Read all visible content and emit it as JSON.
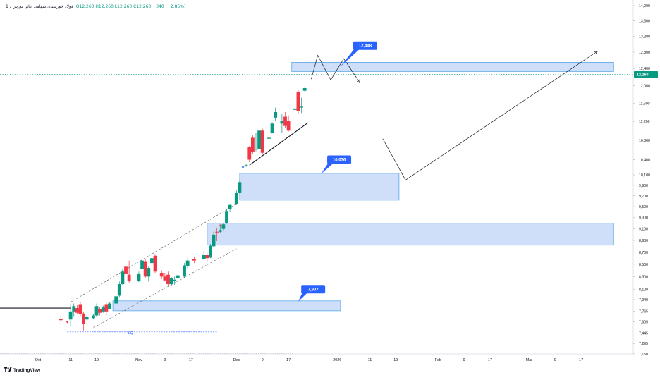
{
  "header": {
    "symbol": "1 ، فولاد خوزستان،سهامی عام، بورس",
    "ohlc": "O12,260 H12,260 L12,260 C12,260 +340 (+2.85%)"
  },
  "brand": "TradingView",
  "colors": {
    "up": "#089981",
    "down": "#f23645",
    "zone_fill": "#bcd2f7",
    "zone_stroke": "#5aa6e6",
    "callout": "#2962ff",
    "last_price": "#089981"
  },
  "chart_data": {
    "type": "candlestick",
    "y_scale": "log",
    "ylim": [
      7150,
      14000
    ],
    "y_ticks": [
      14000,
      13600,
      13200,
      12800,
      12400,
      12000,
      11600,
      11200,
      10800,
      10400,
      10100,
      9900,
      9700,
      9500,
      9300,
      9100,
      8900,
      8700,
      8500,
      8300,
      8100,
      7940,
      7765,
      7605,
      7445,
      7295,
      7150
    ],
    "y_tick_labels": [
      "14,000",
      "13,600",
      "13,200",
      "12,800",
      "12,400",
      "12,000",
      "11,600",
      "11,200",
      "10,800",
      "10,400",
      "10,100",
      "9,900",
      "9,700",
      "9,500",
      "9,300",
      "9,100",
      "8,900",
      "8,700",
      "8,500",
      "8,300",
      "8,100",
      "7,940",
      "7,765",
      "7,605",
      "7,445",
      "7,295",
      "7,150"
    ],
    "x_start": "2025-10-01",
    "x_end": "2026-03-20",
    "x_ticks": [
      {
        "date": "2025-10-01",
        "label": "Oct"
      },
      {
        "date": "2025-10-11",
        "label": "11"
      },
      {
        "date": "2025-10-19",
        "label": "19"
      },
      {
        "date": "2025-11-01",
        "label": "Nov"
      },
      {
        "date": "2025-11-09",
        "label": "9"
      },
      {
        "date": "2025-11-17",
        "label": "17"
      },
      {
        "date": "2025-12-01",
        "label": "Dec"
      },
      {
        "date": "2025-12-09",
        "label": "9"
      },
      {
        "date": "2025-12-17",
        "label": "17"
      },
      {
        "date": "2026-01-01",
        "label": "2026"
      },
      {
        "date": "2026-01-11",
        "label": "11"
      },
      {
        "date": "2026-01-19",
        "label": "19"
      },
      {
        "date": "2026-02-01",
        "label": "Feb"
      },
      {
        "date": "2026-02-09",
        "label": "9"
      },
      {
        "date": "2026-02-17",
        "label": "17"
      },
      {
        "date": "2026-03-01",
        "label": "Mar"
      },
      {
        "date": "2026-03-09",
        "label": "9"
      },
      {
        "date": "2026-03-17",
        "label": "17"
      }
    ],
    "candles": [
      {
        "t": "2025-10-08",
        "o": 7650,
        "h": 7680,
        "l": 7560,
        "c": 7630
      },
      {
        "t": "2025-10-11",
        "o": 7640,
        "h": 7880,
        "l": 7540,
        "c": 7760
      },
      {
        "t": "2025-10-12",
        "o": 7760,
        "h": 7880,
        "l": 7690,
        "c": 7840
      },
      {
        "t": "2025-10-13",
        "o": 7810,
        "h": 7860,
        "l": 7720,
        "c": 7740
      },
      {
        "t": "2025-10-14",
        "o": 7870,
        "h": 7910,
        "l": 7690,
        "c": 7720
      },
      {
        "t": "2025-10-15",
        "o": 7730,
        "h": 7760,
        "l": 7480,
        "c": 7580
      },
      {
        "t": "2025-10-16",
        "o": 7640,
        "h": 7700,
        "l": 7620,
        "c": 7680
      },
      {
        "t": "2025-10-18",
        "o": 7660,
        "h": 7720,
        "l": 7640,
        "c": 7700
      },
      {
        "t": "2025-10-19",
        "o": 7700,
        "h": 7880,
        "l": 7680,
        "c": 7840
      },
      {
        "t": "2025-10-20",
        "o": 7790,
        "h": 7830,
        "l": 7700,
        "c": 7740
      },
      {
        "t": "2025-10-21",
        "o": 7760,
        "h": 7850,
        "l": 7740,
        "c": 7820
      },
      {
        "t": "2025-10-22",
        "o": 7870,
        "h": 7900,
        "l": 7700,
        "c": 7760
      },
      {
        "t": "2025-10-23",
        "o": 7800,
        "h": 7900,
        "l": 7790,
        "c": 7880
      },
      {
        "t": "2025-10-25",
        "o": 7880,
        "h": 8020,
        "l": 7870,
        "c": 7990
      },
      {
        "t": "2025-10-26",
        "o": 8000,
        "h": 8220,
        "l": 7980,
        "c": 8180
      },
      {
        "t": "2025-10-27",
        "o": 8180,
        "h": 8420,
        "l": 8170,
        "c": 8380
      },
      {
        "t": "2025-10-28",
        "o": 8460,
        "h": 8490,
        "l": 8310,
        "c": 8350
      },
      {
        "t": "2025-10-29",
        "o": 8330,
        "h": 8560,
        "l": 8200,
        "c": 8230
      },
      {
        "t": "2025-11-01",
        "o": 8230,
        "h": 8380,
        "l": 8210,
        "c": 8350
      },
      {
        "t": "2025-11-02",
        "o": 8420,
        "h": 8650,
        "l": 8330,
        "c": 8560
      },
      {
        "t": "2025-11-03",
        "o": 8550,
        "h": 8590,
        "l": 8280,
        "c": 8300
      },
      {
        "t": "2025-11-04",
        "o": 8300,
        "h": 8460,
        "l": 8220,
        "c": 8440
      },
      {
        "t": "2025-11-05",
        "o": 8520,
        "h": 8640,
        "l": 8420,
        "c": 8600
      },
      {
        "t": "2025-11-06",
        "o": 8640,
        "h": 8670,
        "l": 8360,
        "c": 8380
      },
      {
        "t": "2025-11-08",
        "o": 8360,
        "h": 8400,
        "l": 8260,
        "c": 8300
      },
      {
        "t": "2025-11-09",
        "o": 8300,
        "h": 8360,
        "l": 8220,
        "c": 8240
      },
      {
        "t": "2025-11-10",
        "o": 8330,
        "h": 8380,
        "l": 8150,
        "c": 8180
      },
      {
        "t": "2025-11-11",
        "o": 8180,
        "h": 8290,
        "l": 8150,
        "c": 8270
      },
      {
        "t": "2025-11-12",
        "o": 8230,
        "h": 8300,
        "l": 8170,
        "c": 8250
      },
      {
        "t": "2025-11-13",
        "o": 8280,
        "h": 8340,
        "l": 8220,
        "c": 8320
      },
      {
        "t": "2025-11-15",
        "o": 8300,
        "h": 8520,
        "l": 8280,
        "c": 8480
      },
      {
        "t": "2025-11-16",
        "o": 8470,
        "h": 8600,
        "l": 8420,
        "c": 8560
      },
      {
        "t": "2025-11-18",
        "o": 8590,
        "h": 8630,
        "l": 8520,
        "c": 8560
      },
      {
        "t": "2025-11-21",
        "o": 8580,
        "h": 8720,
        "l": 8560,
        "c": 8650
      },
      {
        "t": "2025-11-22",
        "o": 8650,
        "h": 8700,
        "l": 8540,
        "c": 8600
      },
      {
        "t": "2025-11-23",
        "o": 8610,
        "h": 8840,
        "l": 8600,
        "c": 8810
      },
      {
        "t": "2025-11-24",
        "o": 8800,
        "h": 9050,
        "l": 8790,
        "c": 9000
      },
      {
        "t": "2025-11-25",
        "o": 9050,
        "h": 9120,
        "l": 8890,
        "c": 9040
      },
      {
        "t": "2025-11-26",
        "o": 9050,
        "h": 9170,
        "l": 9020,
        "c": 9080
      },
      {
        "t": "2025-11-27",
        "o": 9100,
        "h": 9200,
        "l": 9080,
        "c": 9180
      },
      {
        "t": "2025-11-28",
        "o": 9200,
        "h": 9450,
        "l": 9190,
        "c": 9420
      },
      {
        "t": "2025-11-29",
        "o": 9450,
        "h": 9550,
        "l": 9400,
        "c": 9530
      },
      {
        "t": "2025-12-01",
        "o": 9550,
        "h": 9800,
        "l": 9530,
        "c": 9750
      },
      {
        "t": "2025-12-02",
        "o": 9750,
        "h": 10000,
        "l": 9740,
        "c": 9960
      },
      {
        "t": "2025-12-04",
        "o": 10280,
        "h": 10320,
        "l": 10260,
        "c": 10290
      },
      {
        "t": "2025-12-05",
        "o": 10650,
        "h": 10680,
        "l": 10350,
        "c": 10400
      },
      {
        "t": "2025-12-06",
        "o": 10850,
        "h": 10900,
        "l": 10520,
        "c": 10560
      },
      {
        "t": "2025-12-07",
        "o": 10620,
        "h": 10960,
        "l": 10570,
        "c": 10620
      },
      {
        "t": "2025-12-08",
        "o": 10620,
        "h": 11050,
        "l": 10580,
        "c": 11000
      },
      {
        "t": "2025-12-09",
        "o": 11000,
        "h": 11040,
        "l": 10500,
        "c": 10540
      },
      {
        "t": "2025-12-11",
        "o": 10830,
        "h": 11010,
        "l": 10800,
        "c": 10850
      },
      {
        "t": "2025-12-12",
        "o": 10950,
        "h": 11180,
        "l": 10940,
        "c": 11150
      },
      {
        "t": "2025-12-13",
        "o": 11280,
        "h": 11500,
        "l": 11200,
        "c": 11400
      },
      {
        "t": "2025-12-15",
        "o": 11150,
        "h": 11350,
        "l": 10950,
        "c": 11200
      },
      {
        "t": "2025-12-16",
        "o": 11300,
        "h": 11400,
        "l": 11050,
        "c": 11100
      },
      {
        "t": "2025-12-17",
        "o": 11200,
        "h": 11330,
        "l": 10980,
        "c": 11000
      },
      {
        "t": "2025-12-19",
        "o": 11450,
        "h": 11560,
        "l": 11420,
        "c": 11480
      },
      {
        "t": "2025-12-20",
        "o": 11860,
        "h": 11900,
        "l": 11350,
        "c": 11420
      },
      {
        "t": "2025-12-21",
        "o": 11500,
        "h": 11720,
        "l": 11380,
        "c": 11520
      },
      {
        "t": "2025-12-22",
        "o": 11880,
        "h": 11960,
        "l": 11860,
        "c": 11940
      }
    ],
    "last_price": 12260,
    "last_price_label": "12,260",
    "zones": [
      {
        "t1": "2025-12-18",
        "t2": "2026-03-27",
        "top": 12550,
        "bottom": 12330
      },
      {
        "t1": "2025-12-02",
        "t2": "2026-01-20",
        "top": 10130,
        "bottom": 9620
      },
      {
        "t1": "2025-11-22",
        "t2": "2026-03-27",
        "top": 9200,
        "bottom": 8820
      },
      {
        "t1": "2025-10-24",
        "t2": "2026-01-02",
        "top": 7920,
        "bottom": 7770
      }
    ],
    "callouts": [
      {
        "label": "12,448",
        "t": "2026-01-07",
        "v": 12960,
        "point_t": "2026-01-02",
        "point_v": 12450
      },
      {
        "label": "10,076",
        "t": "2025-12-30",
        "v": 10400,
        "point_t": "2025-12-27",
        "point_v": 10120
      },
      {
        "label": "7,907",
        "t": "2025-12-22",
        "v": 8100,
        "point_t": "2025-12-20",
        "point_v": 7910
      }
    ],
    "trend_lines": [
      {
        "style": "dashed",
        "points": [
          [
            "2025-10-11",
            7900
          ],
          [
            "2025-12-01",
            9550
          ]
        ]
      },
      {
        "style": "dashed",
        "points": [
          [
            "2025-10-18",
            7520
          ],
          [
            "2025-12-01",
            8760
          ]
        ]
      },
      {
        "style": "solid",
        "points": [
          [
            "2025-12-05",
            10290
          ],
          [
            "2025-12-23",
            11170
          ]
        ]
      },
      {
        "style": "solid",
        "points": [
          [
            "1970-01-01",
            7810
          ],
          [
            "2025-10-11",
            7810
          ]
        ]
      },
      {
        "style": "thin",
        "points": [
          [
            "2025-12-24",
            12150
          ],
          [
            "2025-12-26",
            12720
          ],
          [
            "2025-12-30",
            12130
          ],
          [
            "2026-01-03",
            12640
          ],
          [
            "2026-01-08",
            12060
          ]
        ]
      },
      {
        "style": "thin",
        "points": [
          [
            "2026-01-15",
            10830
          ],
          [
            "2026-01-22",
            10000
          ],
          [
            "2026-03-22",
            12820
          ]
        ]
      }
    ],
    "liquidity": {
      "label": "LQ",
      "t1": "2025-10-10",
      "t2": "2025-11-25",
      "v": 7460
    },
    "small_markers": [
      {
        "t": "2025-10-10",
        "v": 7600,
        "color": "#f23645",
        "shape": "down"
      },
      {
        "t": "2025-12-03",
        "v": 10240,
        "color": "#2962ff",
        "shape": "down"
      },
      {
        "t": "2025-11-26",
        "v": 9160,
        "color": "#f23645",
        "shape": "cross"
      }
    ]
  }
}
